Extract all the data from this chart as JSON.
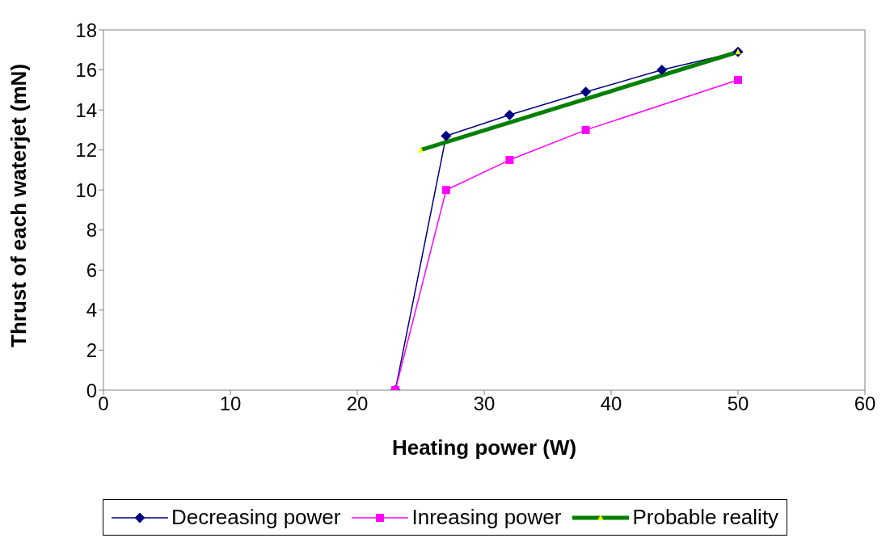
{
  "chart_data": {
    "type": "line",
    "xlabel": "Heating power (W)",
    "ylabel": "Thrust of each waterjet (mN)",
    "xlim": [
      0,
      60
    ],
    "xticks": [
      0,
      10,
      20,
      30,
      40,
      50,
      60
    ],
    "ylim": [
      0,
      18
    ],
    "yticks": [
      0,
      2,
      4,
      6,
      8,
      10,
      12,
      14,
      16,
      18
    ],
    "legend": "bottom",
    "series": [
      {
        "name": "Decreasing power",
        "color": "#000080",
        "marker": "diamond",
        "x": [
          23,
          27,
          32,
          38,
          44,
          50
        ],
        "values": [
          0,
          12.7,
          13.75,
          14.9,
          16,
          16.9
        ]
      },
      {
        "name": "Inreasing power",
        "color": "#ff00ff",
        "marker": "square",
        "x": [
          23,
          27,
          32,
          38,
          50
        ],
        "values": [
          0,
          10,
          11.5,
          13,
          15.5
        ]
      },
      {
        "name": "Probable reality",
        "color": "#008000",
        "marker": "triangle",
        "x": [
          25,
          50
        ],
        "values": [
          12,
          16.9
        ]
      }
    ]
  }
}
